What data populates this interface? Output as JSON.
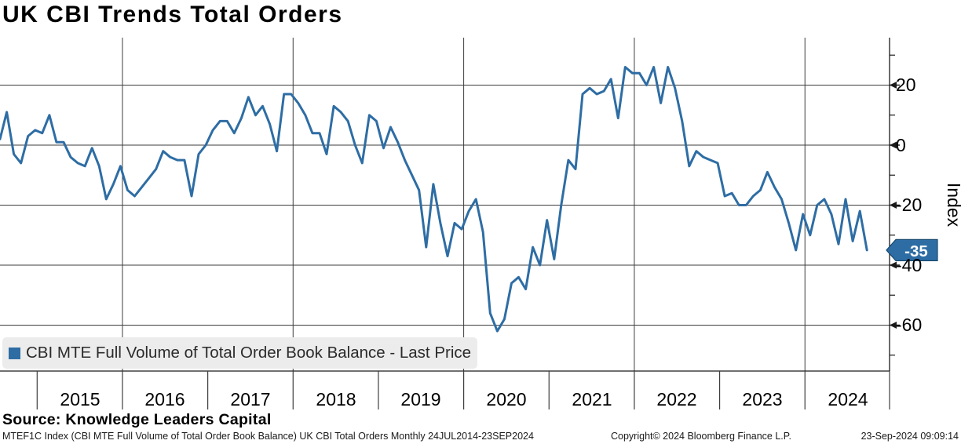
{
  "title": "UK CBI Trends Total Orders",
  "legend": {
    "label": "CBI MTE Full Volume of Total Order Book Balance - Last Price"
  },
  "y_axis": {
    "label": "Index",
    "ticks": [
      "20",
      "0",
      "-20",
      "-40",
      "-60"
    ]
  },
  "x_axis": {
    "years": [
      "2015",
      "2016",
      "2017",
      "2018",
      "2019",
      "2020",
      "2021",
      "2022",
      "2023",
      "2024"
    ]
  },
  "last_price": {
    "label": "-35"
  },
  "source": "Source: Knowledge Leaders Capital",
  "footer": {
    "left": "MTEF1C Index (CBI MTE Full Volume of Total Order Book Balance) UK CBI Total Orders  Monthly 24JUL2014-23SEP2024",
    "copyright": "Copyright© 2024 Bloomberg Finance L.P.",
    "timestamp": "23-Sep-2024 09:09:14"
  },
  "colors": {
    "line": "#2e6da4",
    "badge_fill": "#2e6da4",
    "badge_border": "#16496f",
    "grid": "#3d3d3d",
    "axis": "#1a1a1a",
    "legend_bg": "#ececec"
  },
  "chart_data": {
    "type": "line",
    "title": "UK CBI Trends Total Orders",
    "series_name": "CBI MTE Full Volume of Total Order Book Balance - Last Price",
    "frequency": "Monthly",
    "start": "2014-07",
    "end": "2024-09",
    "xlabel": "",
    "ylabel": "Index",
    "ylim": [
      -75,
      36
    ],
    "y_gridlines": [
      20,
      0,
      -20,
      -40,
      -60
    ],
    "y_minor_ticks": [
      30,
      10,
      -10,
      -30,
      -50,
      -70
    ],
    "x_gridline_years": [
      2016,
      2018,
      2020,
      2022,
      2024
    ],
    "grid": true,
    "legend_position": "bottom-left",
    "last_price": -35,
    "values": [
      2,
      11,
      -3,
      -6,
      3,
      5,
      4,
      10,
      1,
      1,
      -4,
      -6,
      -7,
      -1,
      -7,
      -18,
      -13,
      -7,
      -15,
      -17,
      -14,
      -11,
      -8,
      -2,
      -4,
      -5,
      -5,
      -17,
      -3,
      0,
      5,
      8,
      8,
      4,
      9,
      16,
      10,
      13,
      7,
      -2,
      17,
      17,
      14,
      10,
      4,
      4,
      -3,
      13,
      11,
      8,
      0,
      -6,
      10,
      8,
      -1,
      6,
      1,
      -5,
      -10,
      -15,
      -34,
      -13,
      -26,
      -37,
      -26,
      -28,
      -22,
      -18,
      -29,
      -56,
      -62,
      -58,
      -46,
      -44,
      -48,
      -34,
      -40,
      -25,
      -38,
      -20,
      -5,
      -8,
      17,
      19,
      17,
      18,
      22,
      9,
      26,
      24,
      24,
      20,
      26,
      14,
      26,
      19,
      8,
      -7,
      -2,
      -4,
      -5,
      -6,
      -17,
      -16,
      -20,
      -20,
      -17,
      -15,
      -9,
      -14,
      -18,
      -26,
      -35,
      -23,
      -30,
      -20,
      -18,
      -23,
      -33,
      -18,
      -32,
      -22,
      -35
    ]
  }
}
